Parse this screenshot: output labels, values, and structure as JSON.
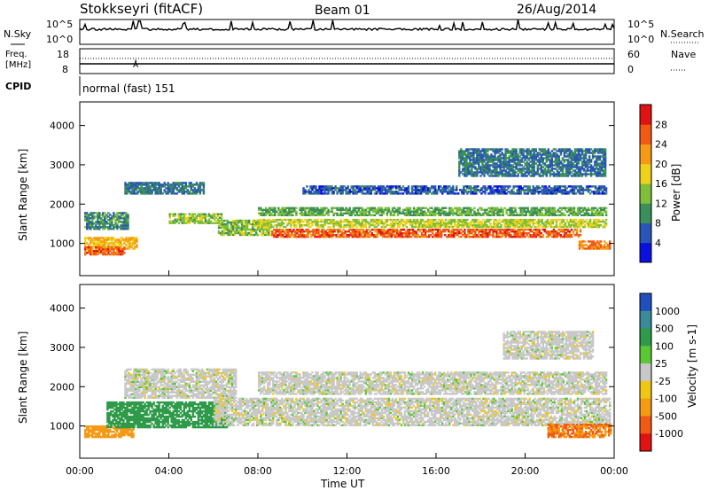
{
  "header": {
    "station": "Stokkseyri (fitACF)",
    "beam": "Beam 01",
    "date": "26/Aug/2014"
  },
  "summary": {
    "nsky_label": "N.Sky",
    "nsky_ticks": [
      "10^5",
      "10^0"
    ],
    "nsearch_label": "N.Search",
    "nsearch_ticks": [
      "10^5",
      "10^0"
    ],
    "freq_label_line1": "Freq.",
    "freq_label_line2": "[MHz]",
    "freq_ticks": [
      "18",
      "8"
    ],
    "nave_label": "Nave",
    "nave_ticks": [
      "60",
      "0"
    ],
    "cpid_label": "CPID",
    "cpid_value": "normal (fast) 151"
  },
  "colors": {
    "power_scale": [
      "#0a10e0",
      "#2a55b8",
      "#3b8f5a",
      "#7fbf3a",
      "#f0d21a",
      "#f59a14",
      "#f05a14",
      "#e01212"
    ],
    "velocity_scale": [
      "#e01212",
      "#f05a14",
      "#f59a14",
      "#f0c814",
      "#c8c8c8",
      "#5ac832",
      "#2e9a4a",
      "#3a8a9a",
      "#2050c0"
    ]
  },
  "chart_data": [
    {
      "type": "heatmap",
      "quantity": "Power",
      "ylabel": "Slant Range [km]",
      "ylim": [
        180,
        4600
      ],
      "yticks": [
        1000,
        2000,
        3000,
        4000
      ],
      "xlim": [
        0,
        24
      ],
      "colorbar_label": "Power [dB]",
      "colorbar_ticks": [
        "4",
        "8",
        "12",
        "16",
        "20",
        "24",
        "28"
      ],
      "colorbar_range": [
        0,
        32
      ],
      "bands": [
        {
          "t": [
            0.2,
            2.2
          ],
          "r": [
            1350,
            1800
          ],
          "power": 10
        },
        {
          "t": [
            0.2,
            2.6
          ],
          "r": [
            850,
            1150
          ],
          "power": 20
        },
        {
          "t": [
            0.2,
            2.0
          ],
          "r": [
            700,
            900
          ],
          "power": 26
        },
        {
          "t": [
            2.0,
            5.6
          ],
          "r": [
            2250,
            2550
          ],
          "power": 8
        },
        {
          "t": [
            4.0,
            6.4
          ],
          "r": [
            1500,
            1750
          ],
          "power": 14
        },
        {
          "t": [
            6.2,
            8.6
          ],
          "r": [
            1200,
            1600
          ],
          "power": 14
        },
        {
          "t": [
            8.6,
            22.5
          ],
          "r": [
            1150,
            1350
          ],
          "power": 26
        },
        {
          "t": [
            8.0,
            23.6
          ],
          "r": [
            1400,
            1600
          ],
          "power": 16
        },
        {
          "t": [
            8.0,
            23.6
          ],
          "r": [
            1700,
            1900
          ],
          "power": 12
        },
        {
          "t": [
            10.0,
            23.6
          ],
          "r": [
            2250,
            2450
          ],
          "power": 6
        },
        {
          "t": [
            22.4,
            23.8
          ],
          "r": [
            850,
            1050
          ],
          "power": 24
        },
        {
          "t": [
            17.0,
            23.6
          ],
          "r": [
            2700,
            3400
          ],
          "power": 8
        }
      ]
    },
    {
      "type": "heatmap",
      "quantity": "Velocity",
      "ylabel": "Slant Range [km]",
      "xlabel": "Time UT",
      "ylim": [
        180,
        4600
      ],
      "yticks": [
        1000,
        2000,
        3000,
        4000
      ],
      "xlim": [
        0,
        24
      ],
      "xticks": [
        "00:00",
        "04:00",
        "08:00",
        "12:00",
        "16:00",
        "20:00",
        "00:00"
      ],
      "colorbar_label": "Velocity [m s-1]",
      "colorbar_ticks": [
        "1000",
        "500",
        "100",
        "25",
        "-25",
        "-100",
        "-500",
        "-1000"
      ],
      "bands": [
        {
          "t": [
            0.2,
            2.4
          ],
          "r": [
            700,
            1000
          ],
          "velocity": -300
        },
        {
          "t": [
            1.2,
            6.6
          ],
          "r": [
            950,
            1600
          ],
          "velocity": 300
        },
        {
          "t": [
            2.0,
            7.0
          ],
          "r": [
            1700,
            2450
          ],
          "velocity": 0
        },
        {
          "t": [
            6.0,
            23.8
          ],
          "r": [
            1000,
            1700
          ],
          "velocity": 0
        },
        {
          "t": [
            8.0,
            23.6
          ],
          "r": [
            1800,
            2350
          ],
          "velocity": 0
        },
        {
          "t": [
            21.0,
            23.8
          ],
          "r": [
            700,
            1050
          ],
          "velocity": -500
        },
        {
          "t": [
            19.0,
            23.0
          ],
          "r": [
            2700,
            3400
          ],
          "velocity": 0
        }
      ]
    }
  ]
}
